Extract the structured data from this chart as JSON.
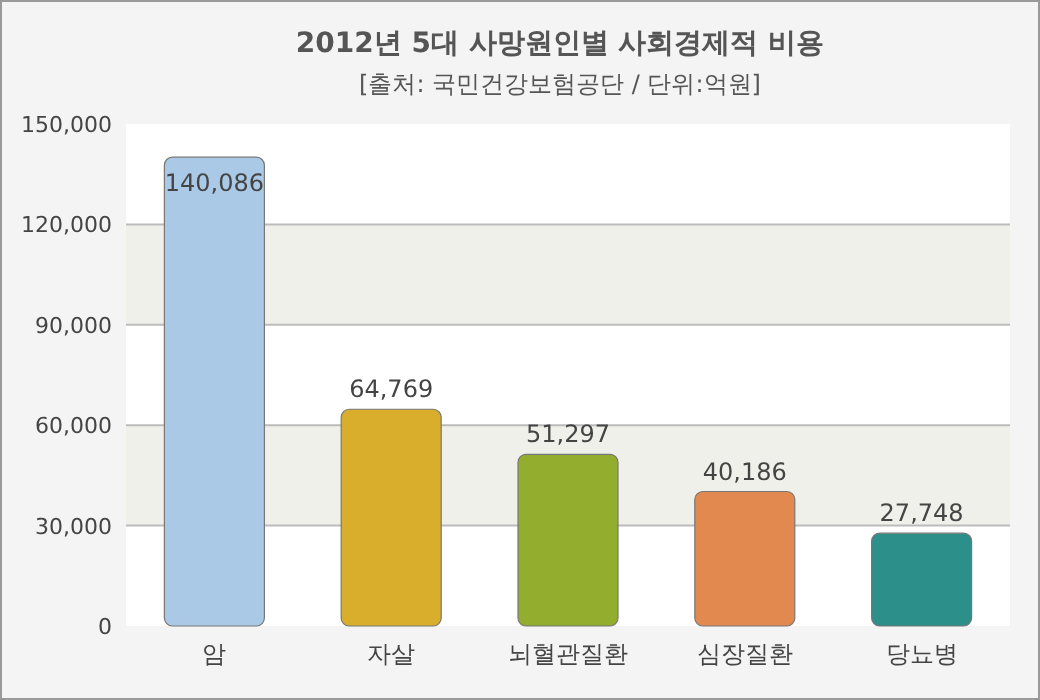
{
  "chart_data": {
    "type": "bar",
    "title": "2012년 5대 사망원인별 사회경제적 비용",
    "subtitle": "[출처: 국민건강보험공단 / 단위:억원]",
    "categories": [
      "암",
      "자살",
      "뇌혈관질환",
      "심장질환",
      "당뇨병"
    ],
    "values": [
      140086,
      64769,
      51297,
      40186,
      27748
    ],
    "colors": [
      "#a9c9e6",
      "#d9ae2c",
      "#93ad2e",
      "#e2894f",
      "#2c8f8a"
    ],
    "ylim": [
      0,
      150000
    ],
    "yticks": [
      {
        "value": 0,
        "label": "0"
      },
      {
        "value": 30000,
        "label": "30,000"
      },
      {
        "value": 60000,
        "label": "60,000"
      },
      {
        "value": 90000,
        "label": "90,000"
      },
      {
        "value": 120000,
        "label": "120,000"
      },
      {
        "value": 150000,
        "label": "150,000"
      }
    ],
    "value_labels": [
      "140,086",
      "64,769",
      "51,297",
      "40,186",
      "27,748"
    ],
    "grid": "y"
  }
}
